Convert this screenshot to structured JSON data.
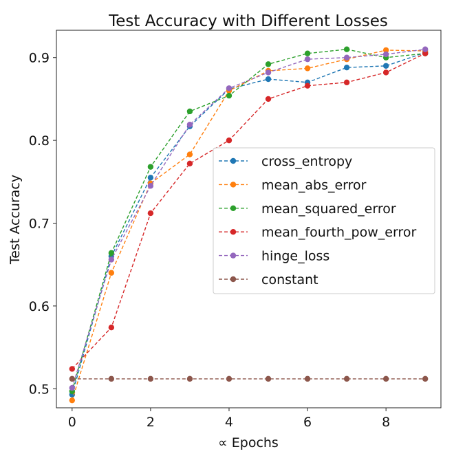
{
  "chart_data": {
    "type": "line",
    "title": "Test Accuracy with Different Losses",
    "xlabel": "∝ Epochs",
    "ylabel": "Test Accuracy",
    "xlim": [
      -0.4,
      9.4
    ],
    "ylim": [
      0.477,
      0.933
    ],
    "xticks": [
      0,
      2,
      4,
      6,
      8
    ],
    "yticks": [
      0.5,
      0.6,
      0.7,
      0.8,
      0.9
    ],
    "grid": false,
    "legend_position": "center-right",
    "x": [
      0,
      1,
      2,
      3,
      4,
      5,
      6,
      7,
      8,
      9
    ],
    "series": [
      {
        "name": "cross_entropy",
        "color": "#1f77b4",
        "values": [
          0.493,
          0.66,
          0.755,
          0.817,
          0.862,
          0.874,
          0.87,
          0.888,
          0.89,
          0.906
        ]
      },
      {
        "name": "mean_abs_error",
        "color": "#ff7f0e",
        "values": [
          0.486,
          0.64,
          0.748,
          0.783,
          0.86,
          0.884,
          0.887,
          0.898,
          0.909,
          0.908
        ]
      },
      {
        "name": "mean_squared_error",
        "color": "#2ca02c",
        "values": [
          0.497,
          0.664,
          0.768,
          0.835,
          0.854,
          0.892,
          0.905,
          0.91,
          0.9,
          0.905
        ]
      },
      {
        "name": "mean_fourth_pow_error",
        "color": "#d62728",
        "values": [
          0.524,
          0.574,
          0.712,
          0.772,
          0.8,
          0.85,
          0.866,
          0.87,
          0.882,
          0.905
        ]
      },
      {
        "name": "hinge_loss",
        "color": "#9467bd",
        "values": [
          0.501,
          0.656,
          0.745,
          0.819,
          0.863,
          0.882,
          0.898,
          0.9,
          0.904,
          0.91
        ]
      },
      {
        "name": "constant",
        "color": "#8c564b",
        "values": [
          0.512,
          0.512,
          0.512,
          0.512,
          0.512,
          0.512,
          0.512,
          0.512,
          0.512,
          0.512
        ]
      }
    ]
  }
}
